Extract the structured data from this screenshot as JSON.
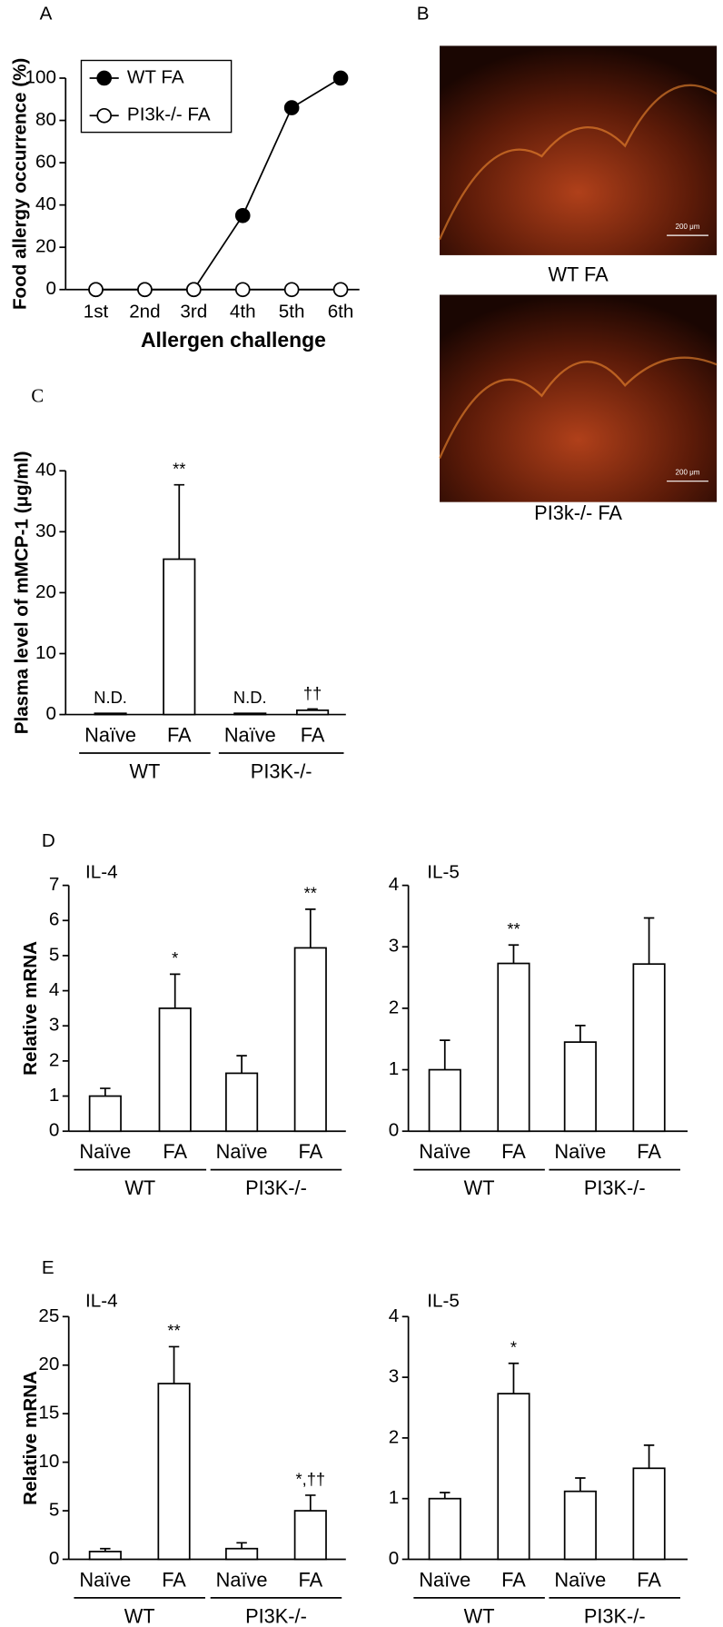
{
  "chart_data": [
    {
      "type": "line",
      "panel": "A",
      "ylabel": "Food allergy occurrence (%)",
      "xlabel": "Allergen challenge",
      "categories": [
        "1st",
        "2nd",
        "3rd",
        "4th",
        "5th",
        "6th"
      ],
      "series": [
        {
          "name": "WT FA",
          "color": "#000000",
          "values": [
            0,
            0,
            0,
            35,
            86,
            100
          ]
        },
        {
          "name": "PI3k-/- FA",
          "color": "#ffffff",
          "values": [
            0,
            0,
            0,
            0,
            0,
            0
          ]
        }
      ],
      "ylim": [
        0,
        100
      ],
      "yticks": [
        0,
        20,
        40,
        60,
        80,
        100
      ],
      "legend": "upper-left"
    },
    {
      "type": "bar",
      "panel": "C",
      "ylabel": "Plasma level of mMCP-1 (μg/ml)",
      "categories": [
        "Naïve",
        "FA",
        "Naïve",
        "FA"
      ],
      "groups": [
        "WT",
        "PI3K-/-"
      ],
      "values": [
        0.2,
        25.5,
        0.2,
        0.7
      ],
      "errors": [
        null,
        12.2,
        null,
        0.2
      ],
      "annotations": [
        "N.D.",
        "**",
        "N.D.",
        "††"
      ],
      "ylim": [
        0,
        40
      ],
      "yticks": [
        0,
        10,
        20,
        30,
        40
      ],
      "color": "#ffffff"
    },
    {
      "type": "bar",
      "panel": "D",
      "subtitle": "IL-4",
      "ylabel": "Relative mRNA",
      "categories": [
        "Naïve",
        "FA",
        "Naïve",
        "FA"
      ],
      "groups": [
        "WT",
        "PI3K-/-"
      ],
      "values": [
        1,
        3.5,
        1.65,
        5.22
      ],
      "errors": [
        0.22,
        0.97,
        0.5,
        1.1
      ],
      "annotations": [
        null,
        "*",
        null,
        "**"
      ],
      "ylim": [
        0,
        7
      ],
      "yticks": [
        0,
        1,
        2,
        3,
        4,
        5,
        6,
        7
      ],
      "color": "#ffffff"
    },
    {
      "type": "bar",
      "subtitle": "IL-5",
      "categories": [
        "Naïve",
        "FA",
        "Naïve",
        "FA"
      ],
      "groups": [
        "WT",
        "PI3K-/-"
      ],
      "values": [
        1,
        2.73,
        1.45,
        2.72
      ],
      "errors": [
        0.48,
        0.3,
        0.27,
        0.75
      ],
      "annotations": [
        null,
        "**",
        null,
        null
      ],
      "ylim": [
        0,
        4
      ],
      "yticks": [
        0,
        1,
        2,
        3,
        4
      ],
      "color": "#ffffff"
    },
    {
      "type": "bar",
      "panel": "E",
      "subtitle": "IL-4",
      "ylabel": "Relative mRNA",
      "categories": [
        "Naïve",
        "FA",
        "Naïve",
        "FA"
      ],
      "groups": [
        "WT",
        "PI3K-/-"
      ],
      "values": [
        0.8,
        18.1,
        1.1,
        5.0
      ],
      "errors": [
        0.3,
        3.8,
        0.6,
        1.6
      ],
      "annotations": [
        null,
        "**",
        null,
        "*,††"
      ],
      "ylim": [
        0,
        25
      ],
      "yticks": [
        0,
        5,
        10,
        15,
        20,
        25
      ],
      "color": "#ffffff"
    },
    {
      "type": "bar",
      "subtitle": "IL-5",
      "categories": [
        "Naïve",
        "FA",
        "Naïve",
        "FA"
      ],
      "groups": [
        "WT",
        "PI3K-/-"
      ],
      "values": [
        1,
        2.73,
        1.12,
        1.5
      ],
      "errors": [
        0.1,
        0.5,
        0.22,
        0.38
      ],
      "annotations": [
        null,
        "*",
        null,
        null
      ],
      "ylim": [
        0,
        4
      ],
      "yticks": [
        0,
        1,
        2,
        3,
        4
      ],
      "color": "#ffffff"
    }
  ],
  "panel_b": {
    "label": "B",
    "images": [
      {
        "caption": "WT FA",
        "scale": "200 μm"
      },
      {
        "caption": "PI3k-/- FA",
        "scale": "200 μm"
      }
    ]
  }
}
